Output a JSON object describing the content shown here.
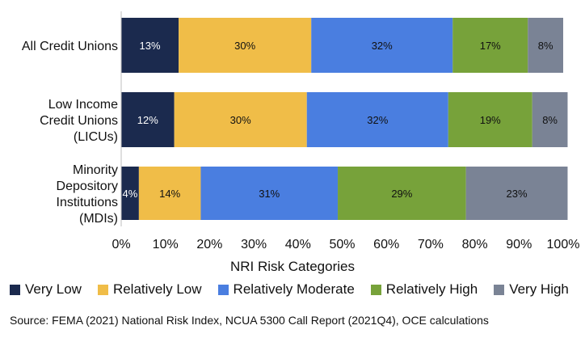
{
  "chart_data": {
    "type": "bar",
    "orientation": "horizontal",
    "stacked": true,
    "categories": [
      [
        "All Credit Unions"
      ],
      [
        "Low Income",
        "Credit Unions",
        "(LICUs)"
      ],
      [
        "Minority",
        "Depository",
        "Institutions",
        "(MDIs)"
      ]
    ],
    "series": [
      {
        "name": "Very Low",
        "color": "#1b2a4e",
        "label_color": "#ffffff",
        "values": [
          13,
          12,
          4
        ],
        "labels": [
          "13%",
          "12%",
          "4%"
        ]
      },
      {
        "name": "Relatively Low",
        "color": "#f0bd48",
        "label_color": "#111111",
        "values": [
          30,
          30,
          14
        ],
        "labels": [
          "30%",
          "30%",
          "14%"
        ]
      },
      {
        "name": "Relatively Moderate",
        "color": "#4a7ee0",
        "label_color": "#111111",
        "values": [
          32,
          32,
          31
        ],
        "labels": [
          "32%",
          "32%",
          "31%"
        ]
      },
      {
        "name": "Relatively High",
        "color": "#77a23a",
        "label_color": "#111111",
        "values": [
          17,
          19,
          29
        ],
        "labels": [
          "17%",
          "19%",
          "29%"
        ]
      },
      {
        "name": "Very High",
        "color": "#7a8395",
        "label_color": "#111111",
        "values": [
          8,
          8,
          23
        ],
        "labels": [
          "8%",
          "8%",
          "23%"
        ]
      }
    ],
    "xlim": [
      0,
      100
    ],
    "xticks": [
      "0%",
      "10%",
      "20%",
      "30%",
      "40%",
      "50%",
      "60%",
      "70%",
      "80%",
      "90%",
      "100%"
    ],
    "legend_title": "NRI Risk Categories",
    "legend_position": "bottom",
    "source": "Source: FEMA (2021) National Risk Index, NCUA 5300 Call Report (2021Q4), OCE calculations"
  }
}
